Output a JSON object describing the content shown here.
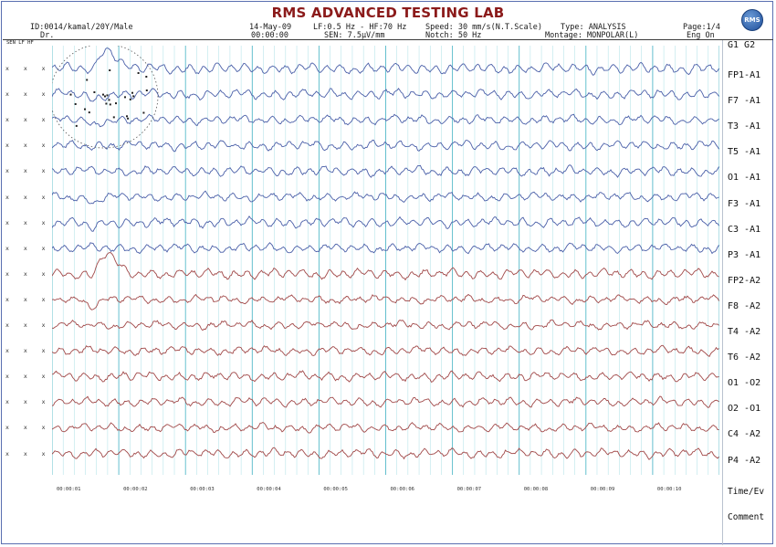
{
  "header": {
    "title": "RMS ADVANCED TESTING LAB",
    "patient": "ID:0014/kamal/20Y/Male",
    "doctor": "Dr.",
    "date": "14-May-09",
    "time": "00:00:00",
    "filter": "LF:0.5 Hz - HF:70 Hz",
    "sensitivity": "SEN: 7.5µV/mm",
    "speed": "Speed: 30 mm/s(N.T.Scale)",
    "notch": "Notch: 50 Hz",
    "type": "Type: ANALYSIS",
    "montage": "Montage: MONPOLAR(L)",
    "page": "Page:1/4",
    "eng": "Eng On",
    "logo_text": "RMS"
  },
  "subheader": "SEN LF HF",
  "grid_tag": "G1  G2",
  "channel_marks": "x x x",
  "channels": [
    {
      "label": "FP1-A1",
      "color": "#4a5fa8"
    },
    {
      "label": "F7 -A1",
      "color": "#4a5fa8"
    },
    {
      "label": "T3 -A1",
      "color": "#4a5fa8"
    },
    {
      "label": "T5 -A1",
      "color": "#4a5fa8"
    },
    {
      "label": "O1 -A1",
      "color": "#4a5fa8"
    },
    {
      "label": "F3 -A1",
      "color": "#4a5fa8"
    },
    {
      "label": "C3 -A1",
      "color": "#4a5fa8"
    },
    {
      "label": "P3 -A1",
      "color": "#4a5fa8"
    },
    {
      "label": "FP2-A2",
      "color": "#a04848"
    },
    {
      "label": "F8 -A2",
      "color": "#a04848"
    },
    {
      "label": "T4 -A2",
      "color": "#a04848"
    },
    {
      "label": "T6 -A2",
      "color": "#a04848"
    },
    {
      "label": "O1 -O2",
      "color": "#a04848"
    },
    {
      "label": "O2 -O1",
      "color": "#a04848"
    },
    {
      "label": "C4 -A2",
      "color": "#a04848"
    },
    {
      "label": "P4 -A2",
      "color": "#a04848"
    }
  ],
  "time_marks": [
    "00:00:01",
    "00:00:02",
    "00:00:03",
    "00:00:04",
    "00:00:05",
    "00:00:06",
    "00:00:07",
    "00:00:08",
    "00:00:09",
    "00:00:10"
  ],
  "time_ev_label": "Time/Ev",
  "comment_label": "Comment"
}
